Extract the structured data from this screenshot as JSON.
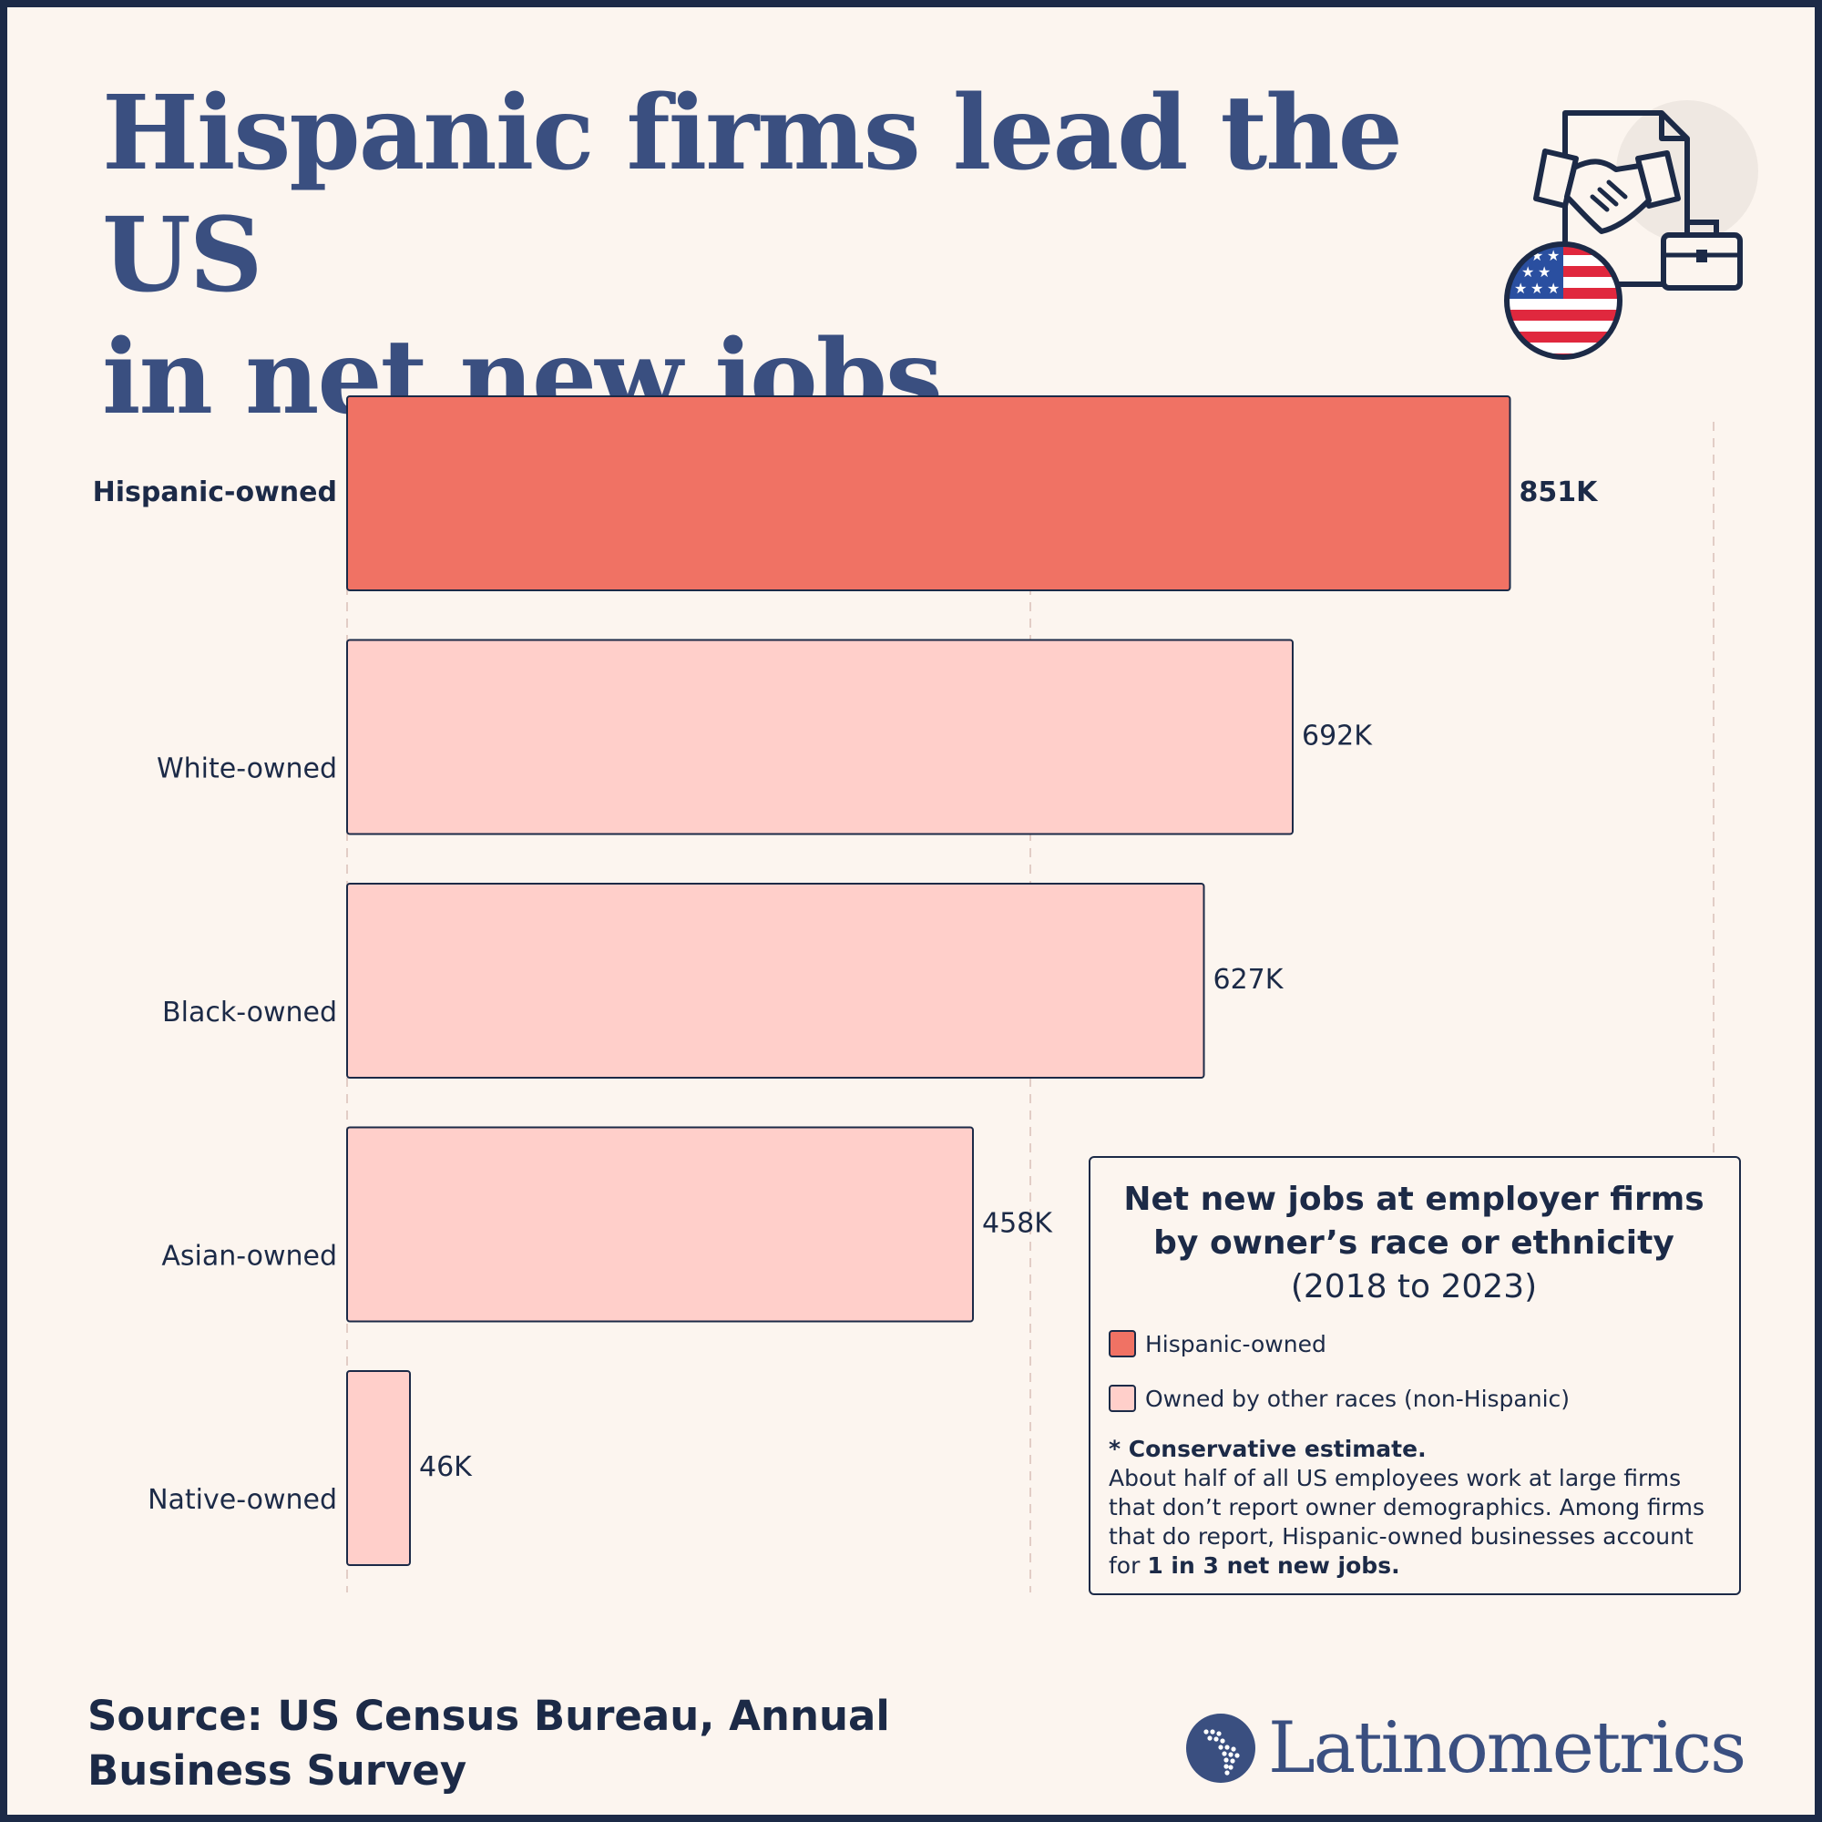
{
  "title": {
    "line1": "Hispanic firms lead the US",
    "line2": "in net new jobs"
  },
  "icons": {
    "hero": "handshake-contract-briefcase-us-flag-icon",
    "brand": "latin-america-map-logo-icon"
  },
  "chart_data": {
    "type": "bar",
    "orientation": "horizontal",
    "title": "Net new jobs at employer firms by owner’s race or ethnicity",
    "subtitle": "(2018 to 2023)",
    "categories": [
      "Hispanic-owned",
      "White-owned",
      "Black-owned",
      "Asian-owned",
      "Native-owned"
    ],
    "values": [
      851,
      692,
      627,
      458,
      46
    ],
    "value_labels": [
      "851K",
      "692K",
      "627K",
      "458K",
      "46K"
    ],
    "highlight": [
      true,
      false,
      false,
      false,
      false
    ],
    "units": "thousands of jobs",
    "xlim": [
      0,
      1000
    ],
    "gridlines": [
      0,
      500,
      1000
    ],
    "legend_position": "bottom-right",
    "colors": {
      "highlight": "#f07264",
      "other": "#ffcfca",
      "outline": "#1c2a47"
    }
  },
  "legend": {
    "title": "Net new jobs at employer firms by owner’s race or ethnicity",
    "subtitle": "(2018 to 2023)",
    "items": [
      {
        "label": "Hispanic-owned",
        "color": "#f07264"
      },
      {
        "label": "Owned by other races (non-Hispanic)",
        "color": "#ffcfca"
      }
    ],
    "note_heading": "* Conservative estimate.",
    "note_body": "About half of all US employees work at large firms that don’t report owner demographics. Among firms that do report, Hispanic-owned businesses account for ",
    "note_emphasis": "1 in 3 net new jobs."
  },
  "source": "Source: US Census Bureau, Annual Business Survey",
  "brand": {
    "name": "Latinometrics",
    "color": "#3a4f80"
  },
  "colors": {
    "background": "#fcf5ef",
    "frame": "#1c2a47",
    "title": "#3a4f80",
    "text": "#1c2a47"
  }
}
